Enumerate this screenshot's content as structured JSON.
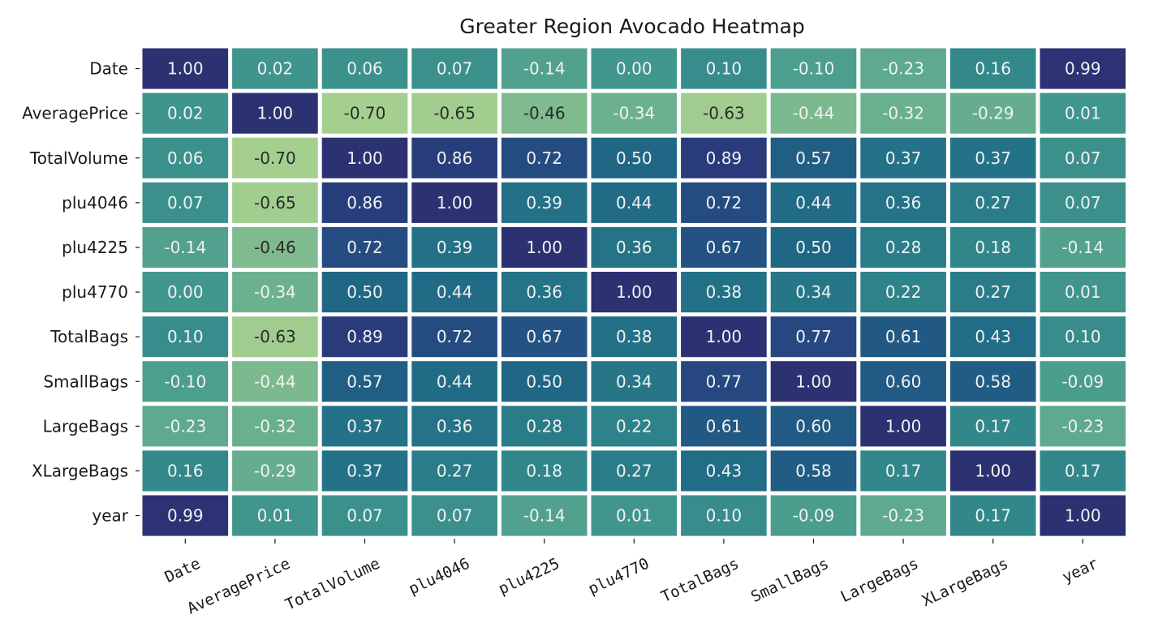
{
  "chart_data": {
    "type": "heatmap",
    "title": "Greater Region Avocado Heatmap",
    "xlabel": "",
    "ylabel": "",
    "row_labels": [
      "Date",
      "AveragePrice",
      "TotalVolume",
      "plu4046",
      "plu4225",
      "plu4770",
      "TotalBags",
      "SmallBags",
      "LargeBags",
      "XLargeBags",
      "year"
    ],
    "col_labels": [
      "Date",
      "AveragePrice",
      "TotalVolume",
      "plu4046",
      "plu4225",
      "plu4770",
      "TotalBags",
      "SmallBags",
      "LargeBags",
      "XLargeBags",
      "year"
    ],
    "values": [
      [
        1.0,
        0.02,
        0.06,
        0.07,
        -0.14,
        0.0,
        0.1,
        -0.1,
        -0.23,
        0.16,
        0.99
      ],
      [
        0.02,
        1.0,
        -0.7,
        -0.65,
        -0.46,
        -0.34,
        -0.63,
        -0.44,
        -0.32,
        -0.29,
        0.01
      ],
      [
        0.06,
        -0.7,
        1.0,
        0.86,
        0.72,
        0.5,
        0.89,
        0.57,
        0.37,
        0.37,
        0.07
      ],
      [
        0.07,
        -0.65,
        0.86,
        1.0,
        0.39,
        0.44,
        0.72,
        0.44,
        0.36,
        0.27,
        0.07
      ],
      [
        -0.14,
        -0.46,
        0.72,
        0.39,
        1.0,
        0.36,
        0.67,
        0.5,
        0.28,
        0.18,
        -0.14
      ],
      [
        0.0,
        -0.34,
        0.5,
        0.44,
        0.36,
        1.0,
        0.38,
        0.34,
        0.22,
        0.27,
        0.01
      ],
      [
        0.1,
        -0.63,
        0.89,
        0.72,
        0.67,
        0.38,
        1.0,
        0.77,
        0.61,
        0.43,
        0.1
      ],
      [
        -0.1,
        -0.44,
        0.57,
        0.44,
        0.5,
        0.34,
        0.77,
        1.0,
        0.6,
        0.58,
        -0.09
      ],
      [
        -0.23,
        -0.32,
        0.37,
        0.36,
        0.28,
        0.22,
        0.61,
        0.6,
        1.0,
        0.17,
        -0.23
      ],
      [
        0.16,
        -0.29,
        0.37,
        0.27,
        0.18,
        0.27,
        0.43,
        0.58,
        0.17,
        1.0,
        0.17
      ],
      [
        0.99,
        0.01,
        0.07,
        0.07,
        -0.14,
        0.01,
        0.1,
        -0.09,
        -0.23,
        0.17,
        1.0
      ]
    ],
    "value_format": "2 decimals",
    "colorbar": false,
    "colormap": "crest",
    "color_scale": {
      "min": -0.7,
      "max": 1.0,
      "stops": [
        {
          "value": -0.7,
          "color": "#a5cf8f"
        },
        {
          "value": -0.63,
          "color": "#a0cd8f"
        },
        {
          "value": -0.46,
          "color": "#7fbb8f"
        },
        {
          "value": -0.34,
          "color": "#6cb18f"
        },
        {
          "value": -0.23,
          "color": "#5ea98f"
        },
        {
          "value": -0.1,
          "color": "#4c9e8e"
        },
        {
          "value": 0.0,
          "color": "#41968d"
        },
        {
          "value": 0.1,
          "color": "#388d8c"
        },
        {
          "value": 0.2,
          "color": "#2f8489"
        },
        {
          "value": 0.3,
          "color": "#287a88"
        },
        {
          "value": 0.4,
          "color": "#226f87"
        },
        {
          "value": 0.5,
          "color": "#206685"
        },
        {
          "value": 0.6,
          "color": "#215a84"
        },
        {
          "value": 0.7,
          "color": "#254e82"
        },
        {
          "value": 0.8,
          "color": "#27447f"
        },
        {
          "value": 0.9,
          "color": "#293a7a"
        },
        {
          "value": 1.0,
          "color": "#2c3172"
        }
      ]
    },
    "text_colors": {
      "light": "#f2f2f2",
      "dark": "#2a2a2a",
      "dark_text_below": -0.45
    },
    "cell_border_color": "#ffffff",
    "tick_color": "#1a1a1a"
  }
}
